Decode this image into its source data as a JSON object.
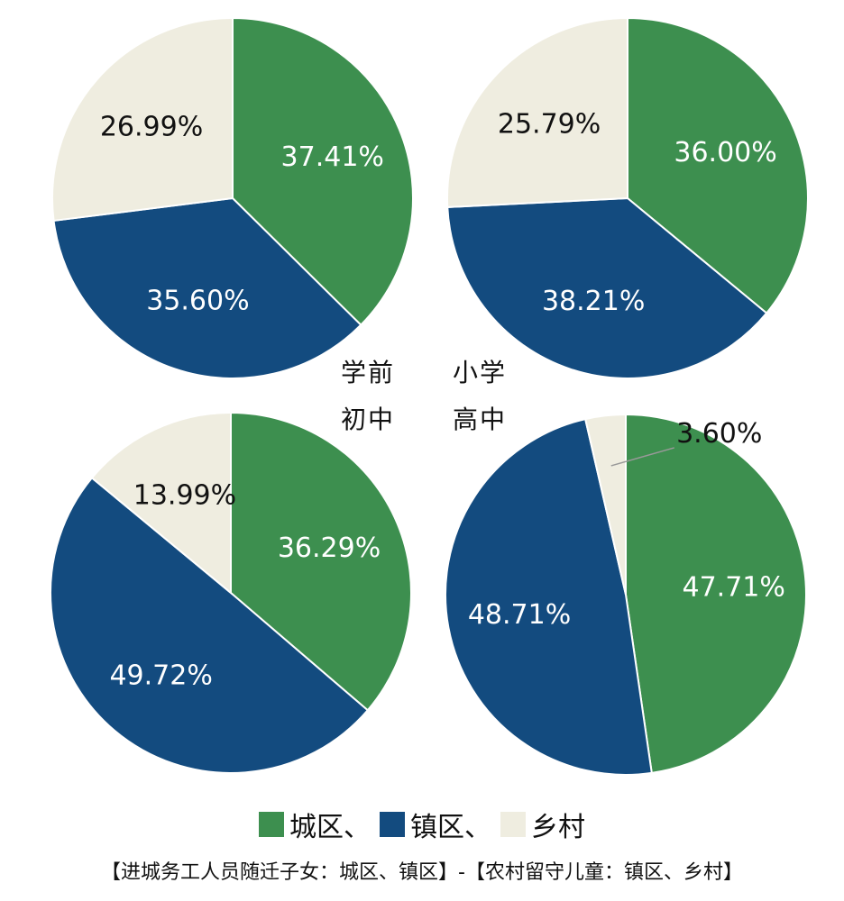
{
  "chart_data": [
    {
      "type": "pie",
      "title": "学前",
      "categories": [
        "城区",
        "镇区",
        "乡村"
      ],
      "values": [
        37.41,
        35.6,
        26.99
      ],
      "labels": [
        "37.41%",
        "35.60%",
        "26.99%"
      ]
    },
    {
      "type": "pie",
      "title": "小学",
      "categories": [
        "城区",
        "镇区",
        "乡村"
      ],
      "values": [
        36.0,
        38.21,
        25.79
      ],
      "labels": [
        "36.00%",
        "38.21%",
        "25.79%"
      ]
    },
    {
      "type": "pie",
      "title": "初中",
      "categories": [
        "城区",
        "镇区",
        "乡村"
      ],
      "values": [
        36.29,
        49.72,
        13.99
      ],
      "labels": [
        "36.29%",
        "49.72%",
        "13.99%"
      ]
    },
    {
      "type": "pie",
      "title": "高中",
      "categories": [
        "城区",
        "镇区",
        "乡村"
      ],
      "values": [
        47.71,
        48.71,
        3.6
      ],
      "labels": [
        "47.71%",
        "48.71%",
        "3.60%"
      ]
    }
  ],
  "colors": {
    "城区": "#3d8f4f",
    "镇区": "#134b7f",
    "乡村": "#efede0",
    "label_on_dark": "#ffffff",
    "label_on_light": "#111111"
  },
  "legend": {
    "items": [
      {
        "label": "城区、",
        "color": "#3d8f4f"
      },
      {
        "label": "镇区、",
        "color": "#134b7f"
      },
      {
        "label": "乡村",
        "color": "#efede0"
      }
    ]
  },
  "footnote": "【进城务工人员随迁子女：城区、镇区】-【农村留守儿童：镇区、乡村】"
}
